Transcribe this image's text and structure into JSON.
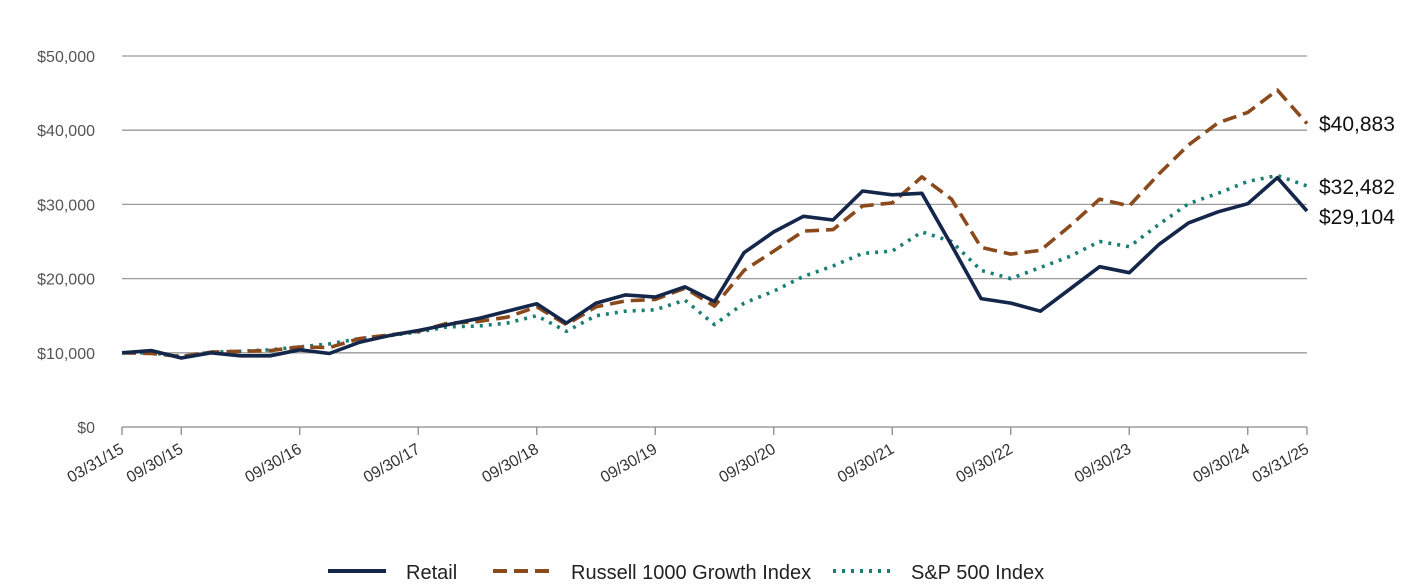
{
  "chart_data": {
    "type": "line",
    "title": "",
    "xlabel": "",
    "ylabel": "",
    "ylim": [
      0,
      50000
    ],
    "yticks": [
      0,
      10000,
      20000,
      30000,
      40000,
      50000
    ],
    "ytick_labels": [
      "$0",
      "$10,000",
      "$20,000",
      "$30,000",
      "$40,000",
      "$50,000"
    ],
    "x": [
      "03/31/15",
      "06/30/15",
      "09/30/15",
      "12/31/15",
      "03/31/16",
      "06/30/16",
      "09/30/16",
      "12/31/16",
      "03/31/17",
      "06/30/17",
      "09/30/17",
      "12/31/17",
      "03/31/18",
      "06/30/18",
      "09/30/18",
      "12/31/18",
      "03/31/19",
      "06/30/19",
      "09/30/19",
      "12/31/19",
      "03/31/20",
      "06/30/20",
      "09/30/20",
      "12/31/20",
      "03/31/21",
      "06/30/21",
      "09/30/21",
      "12/31/21",
      "03/31/22",
      "06/30/22",
      "09/30/22",
      "12/31/22",
      "03/31/23",
      "06/30/23",
      "09/30/23",
      "12/31/23",
      "03/31/24",
      "06/30/24",
      "09/30/24",
      "12/31/24",
      "03/31/25"
    ],
    "xtick_labels": [
      "03/31/15",
      "09/30/15",
      "09/30/16",
      "09/30/17",
      "09/30/18",
      "09/30/19",
      "09/30/20",
      "09/30/21",
      "09/30/22",
      "09/30/23",
      "09/30/24",
      "03/31/25"
    ],
    "grid": true,
    "legend_position": "bottom",
    "series": [
      {
        "name": "Retail",
        "color": "#14264a",
        "style": "solid",
        "end_label": "$29,104",
        "values": [
          10000,
          10300,
          9300,
          10000,
          9600,
          9600,
          10400,
          9900,
          11400,
          12300,
          13000,
          13800,
          14600,
          15600,
          16600,
          14000,
          16700,
          17800,
          17500,
          18900,
          16900,
          23500,
          26300,
          28400,
          27900,
          31800,
          31300,
          31500,
          24500,
          17300,
          16700,
          15600,
          18600,
          21600,
          20800,
          24600,
          27500,
          29000,
          30100,
          33600,
          29104
        ]
      },
      {
        "name": "Russell 1000 Growth Index",
        "color": "#8b4a1c",
        "style": "dashed",
        "end_label": "$40,883",
        "values": [
          10000,
          9900,
          9500,
          10100,
          10200,
          10300,
          10800,
          10700,
          11900,
          12400,
          12900,
          14000,
          14200,
          14800,
          16200,
          13800,
          16200,
          17000,
          17200,
          18700,
          16300,
          21100,
          23700,
          26400,
          26600,
          29800,
          30200,
          33700,
          30700,
          24200,
          23300,
          23800,
          27100,
          30700,
          29800,
          34100,
          38000,
          41000,
          42400,
          45400,
          40883
        ]
      },
      {
        "name": "S&P 500 Index",
        "color": "#1a7e74",
        "style": "dotted",
        "end_label": "$32,482",
        "values": [
          10000,
          10000,
          9500,
          10100,
          10200,
          10400,
          10800,
          11200,
          11900,
          12300,
          12800,
          13500,
          13600,
          14000,
          15000,
          12900,
          15000,
          15600,
          15800,
          17100,
          13800,
          16700,
          18300,
          20300,
          21700,
          23400,
          23700,
          26300,
          25000,
          21100,
          20000,
          21500,
          23000,
          25000,
          24300,
          27300,
          30100,
          31500,
          33100,
          33900,
          32482
        ]
      }
    ]
  }
}
